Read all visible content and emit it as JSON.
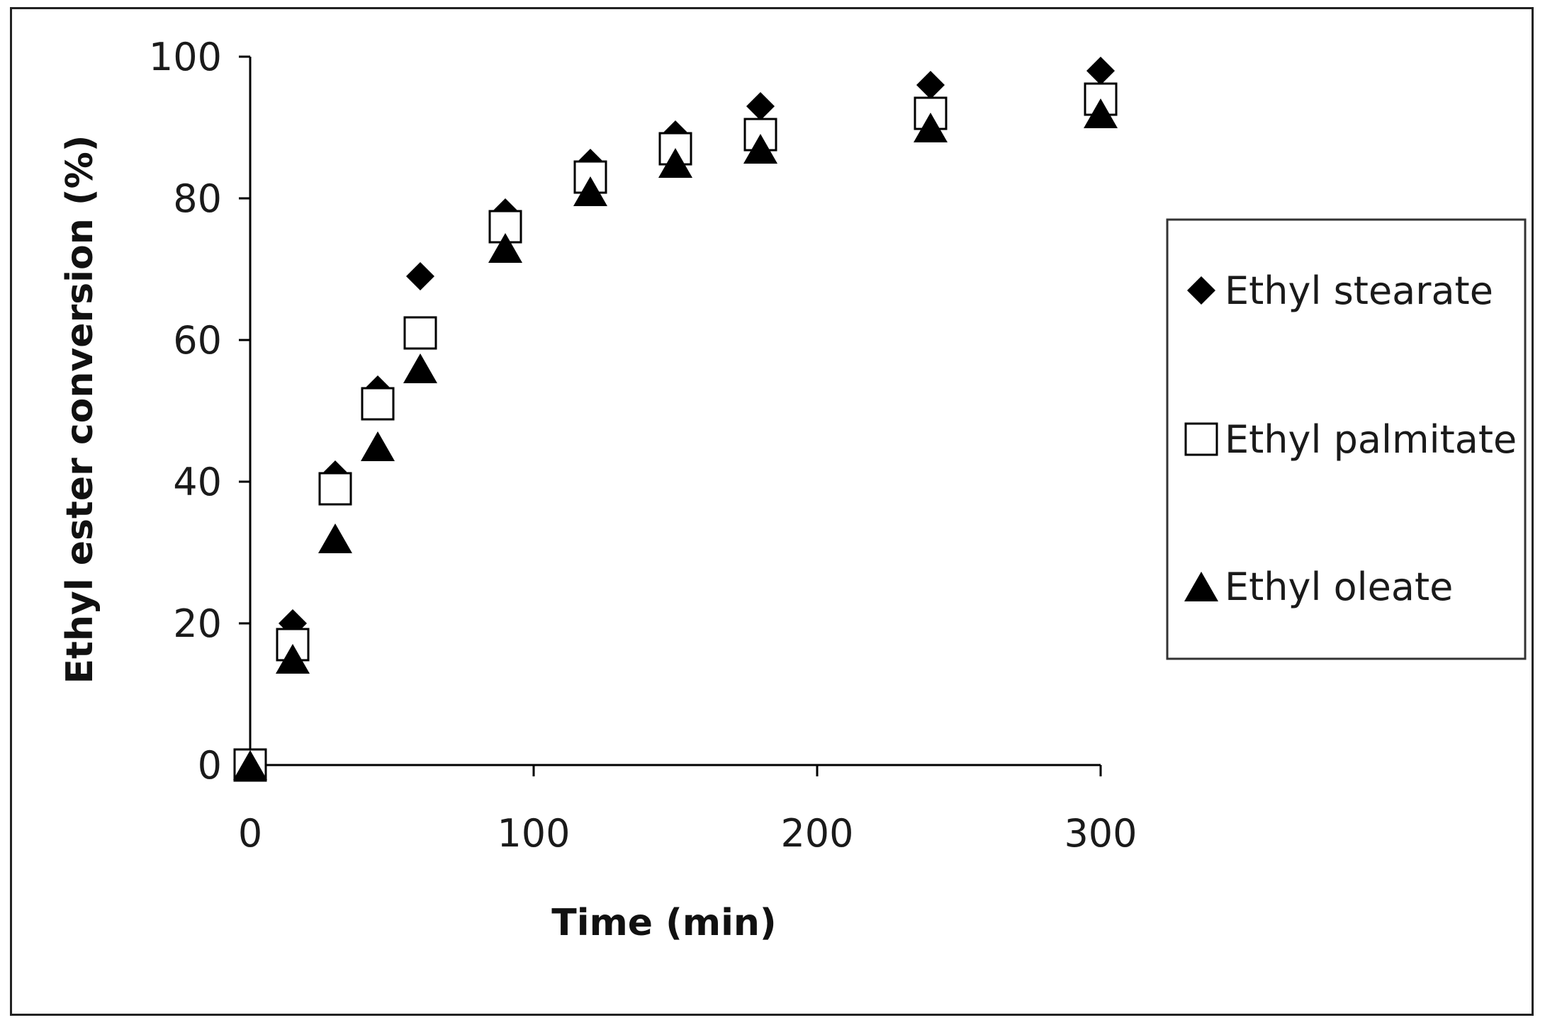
{
  "chart_data": {
    "type": "scatter",
    "title": "",
    "xlabel": "Time (min)",
    "ylabel": "Ethyl  ester conversion (%)",
    "xlim": [
      0,
      300
    ],
    "ylim": [
      0,
      100
    ],
    "xticks": [
      "0",
      "100",
      "200",
      "300"
    ],
    "yticks": [
      "0",
      "20",
      "40",
      "60",
      "80",
      "100"
    ],
    "grid": false,
    "legend_position": "right",
    "series": [
      {
        "name": "Ethyl stearate",
        "marker": "diamond-filled",
        "color": "#000000",
        "x": [
          0,
          15,
          30,
          45,
          60,
          90,
          120,
          150,
          180,
          240,
          300
        ],
        "y": [
          0,
          20,
          41,
          53,
          69,
          78,
          85,
          89,
          93,
          96,
          98
        ]
      },
      {
        "name": "Ethyl palmitate",
        "marker": "square-open",
        "color": "#000000",
        "x": [
          0,
          15,
          30,
          45,
          60,
          90,
          120,
          150,
          180,
          240,
          300
        ],
        "y": [
          0,
          17,
          39,
          51,
          61,
          76,
          83,
          87,
          89,
          92,
          94
        ]
      },
      {
        "name": "Ethyl oleate",
        "marker": "triangle-filled",
        "color": "#000000",
        "x": [
          0,
          15,
          30,
          45,
          60,
          90,
          120,
          150,
          180,
          240,
          300
        ],
        "y": [
          0,
          15,
          32,
          45,
          56,
          73,
          81,
          85,
          87,
          90,
          92
        ]
      }
    ]
  }
}
